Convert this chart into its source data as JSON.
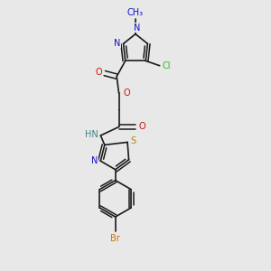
{
  "background_color": "#e8e8e8",
  "fig_width": 3.0,
  "fig_height": 3.0,
  "dpi": 100,
  "bond_color": "#1a1a1a",
  "colors": {
    "N": "#1010cc",
    "O": "#cc1010",
    "S": "#b8860b",
    "Cl": "#20c020",
    "Br": "#cc7000",
    "H_text": "#408080",
    "bond": "#1a1a1a"
  },
  "font_size": 7.0
}
